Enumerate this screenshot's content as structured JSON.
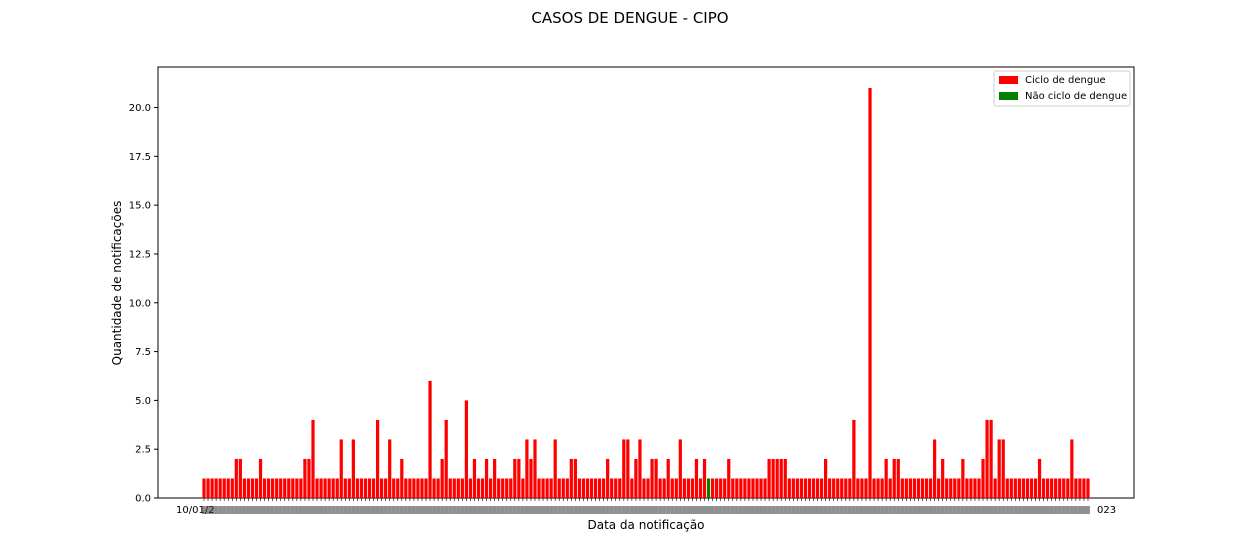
{
  "chart_data": {
    "type": "bar",
    "title": "CASOS DE DENGUE - CIPO",
    "xlabel": "Data da notificação",
    "ylabel": "Quantidade de notificações",
    "ylim": [
      0,
      22
    ],
    "yticks": [
      "0.0",
      "2.5",
      "5.0",
      "7.5",
      "10.0",
      "12.5",
      "15.0",
      "17.5",
      "20.0"
    ],
    "grid": false,
    "legend_position": "top-right",
    "x_tick_label_first": "10/01/2",
    "x_tick_label_last": "023",
    "series": [
      {
        "name": "Ciclo de dengue",
        "color": "#ff0000"
      },
      {
        "name": "Não ciclo de dengue",
        "color": "#008000"
      }
    ],
    "values": [
      1,
      1,
      1,
      1,
      1,
      1,
      1,
      1,
      2,
      2,
      1,
      1,
      1,
      1,
      2,
      1,
      1,
      1,
      1,
      1,
      1,
      1,
      1,
      1,
      1,
      2,
      2,
      4,
      1,
      1,
      1,
      1,
      1,
      1,
      3,
      1,
      1,
      3,
      1,
      1,
      1,
      1,
      1,
      4,
      1,
      1,
      3,
      1,
      1,
      2,
      1,
      1,
      1,
      1,
      1,
      1,
      6,
      1,
      1,
      2,
      4,
      1,
      1,
      1,
      1,
      5,
      1,
      2,
      1,
      1,
      2,
      1,
      2,
      1,
      1,
      1,
      1,
      2,
      2,
      1,
      3,
      2,
      3,
      1,
      1,
      1,
      1,
      3,
      1,
      1,
      1,
      2,
      2,
      1,
      1,
      1,
      1,
      1,
      1,
      1,
      2,
      1,
      1,
      1,
      3,
      3,
      1,
      2,
      3,
      1,
      1,
      2,
      2,
      1,
      1,
      2,
      1,
      1,
      3,
      1,
      1,
      1,
      2,
      1,
      2,
      1,
      1,
      1,
      1,
      1,
      2,
      1,
      1,
      1,
      1,
      1,
      1,
      1,
      1,
      1,
      2,
      2,
      2,
      2,
      2,
      1,
      1,
      1,
      1,
      1,
      1,
      1,
      1,
      1,
      2,
      1,
      1,
      1,
      1,
      1,
      1,
      4,
      1,
      1,
      1,
      21,
      1,
      1,
      1,
      2,
      1,
      2,
      2,
      1,
      1,
      1,
      1,
      1,
      1,
      1,
      1,
      3,
      1,
      2,
      1,
      1,
      1,
      1,
      2,
      1,
      1,
      1,
      1,
      2,
      4,
      4,
      1,
      3,
      3,
      1,
      1,
      1,
      1,
      1,
      1,
      1,
      1,
      2,
      1,
      1,
      1,
      1,
      1,
      1,
      1,
      3,
      1,
      1,
      1,
      1
    ],
    "green_bar_indices": [
      125
    ]
  }
}
